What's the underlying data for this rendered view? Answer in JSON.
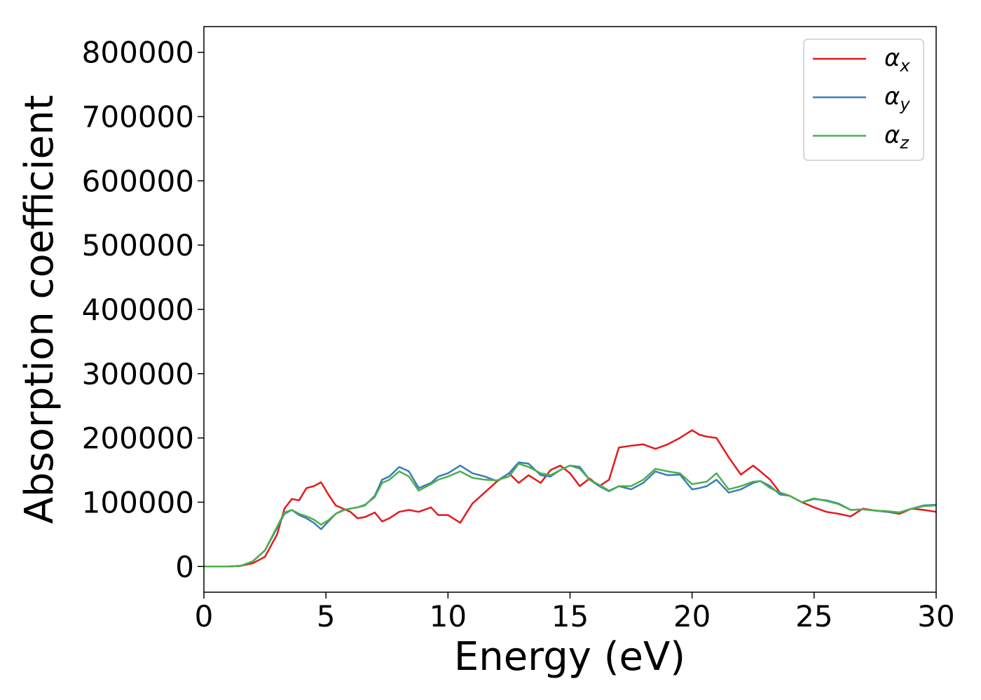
{
  "chart_data": {
    "type": "line",
    "title": "",
    "xlabel": "Energy (eV)",
    "ylabel": "Absorption coefficient",
    "xlim": [
      0,
      30
    ],
    "ylim": [
      -40000,
      840000
    ],
    "xticks": [
      0,
      5,
      10,
      15,
      20,
      25,
      30
    ],
    "yticks": [
      0,
      100000,
      200000,
      300000,
      400000,
      500000,
      600000,
      700000,
      800000
    ],
    "grid": false,
    "legend_position": "top-right",
    "series": [
      {
        "name": "α",
        "subscript": "x",
        "color": "#e41a1c",
        "x": [
          0,
          1,
          1.5,
          2,
          2.5,
          3,
          3.3,
          3.6,
          3.9,
          4.2,
          4.5,
          4.8,
          5.1,
          5.4,
          5.7,
          6,
          6.3,
          6.6,
          7,
          7.3,
          7.6,
          8,
          8.4,
          8.8,
          9.3,
          9.6,
          10,
          10.5,
          11,
          11.5,
          12,
          12.5,
          12.9,
          13.3,
          13.8,
          14.2,
          14.6,
          15,
          15.4,
          15.8,
          16.2,
          16.6,
          17,
          17.5,
          18,
          18.5,
          19,
          19.5,
          20,
          20.3,
          20.6,
          21,
          21.5,
          22,
          22.5,
          22.8,
          23.2,
          23.6,
          24,
          24.5,
          25,
          25.5,
          26,
          26.5,
          27,
          27.5,
          28,
          28.5,
          29,
          29.5,
          30
        ],
        "y": [
          0,
          0,
          1000,
          5000,
          15000,
          50000,
          90000,
          105000,
          103000,
          122000,
          125000,
          131000,
          112000,
          95000,
          90000,
          85000,
          75000,
          77000,
          84000,
          70000,
          75000,
          85000,
          88000,
          85000,
          92000,
          80000,
          80000,
          68000,
          98000,
          115000,
          132000,
          145000,
          130000,
          142000,
          130000,
          150000,
          157000,
          145000,
          125000,
          137000,
          125000,
          135000,
          185000,
          188000,
          190000,
          183000,
          190000,
          200000,
          212000,
          205000,
          202000,
          200000,
          170000,
          143000,
          157000,
          148000,
          135000,
          115000,
          110000,
          100000,
          92000,
          85000,
          82000,
          78000,
          90000,
          87000,
          85000,
          82000,
          90000,
          88000,
          85000
        ]
      },
      {
        "name": "α",
        "subscript": "y",
        "color": "#377eb8",
        "x": [
          0,
          1,
          1.5,
          2,
          2.5,
          3,
          3.3,
          3.6,
          3.9,
          4.2,
          4.5,
          4.8,
          5.1,
          5.4,
          5.7,
          6,
          6.3,
          6.6,
          7,
          7.3,
          7.6,
          8,
          8.4,
          8.8,
          9.3,
          9.6,
          10,
          10.5,
          11,
          11.5,
          12,
          12.5,
          12.9,
          13.3,
          13.8,
          14.2,
          14.6,
          15,
          15.4,
          15.8,
          16.2,
          16.6,
          17,
          17.5,
          18,
          18.5,
          19,
          19.5,
          20,
          20.3,
          20.6,
          21,
          21.5,
          22,
          22.5,
          22.8,
          23.2,
          23.6,
          24,
          24.5,
          25,
          25.5,
          26,
          26.5,
          27,
          27.5,
          28,
          28.5,
          29,
          29.5,
          30
        ],
        "y": [
          0,
          0,
          1000,
          8000,
          25000,
          60000,
          82000,
          88000,
          80000,
          75000,
          68000,
          58000,
          70000,
          82000,
          88000,
          90000,
          92000,
          95000,
          110000,
          135000,
          140000,
          155000,
          148000,
          122000,
          130000,
          140000,
          145000,
          157000,
          145000,
          140000,
          133000,
          145000,
          162000,
          160000,
          142000,
          140000,
          150000,
          157000,
          155000,
          135000,
          125000,
          117000,
          125000,
          120000,
          130000,
          148000,
          142000,
          143000,
          120000,
          122000,
          125000,
          135000,
          115000,
          120000,
          130000,
          133000,
          125000,
          112000,
          110000,
          100000,
          105000,
          103000,
          98000,
          88000,
          89000,
          87000,
          85000,
          84000,
          90000,
          95000,
          96000
        ]
      },
      {
        "name": "α",
        "subscript": "z",
        "color": "#4daf4a",
        "x": [
          0,
          1,
          1.5,
          2,
          2.5,
          3,
          3.3,
          3.6,
          3.9,
          4.2,
          4.5,
          4.8,
          5.1,
          5.4,
          5.7,
          6,
          6.3,
          6.6,
          7,
          7.3,
          7.6,
          8,
          8.4,
          8.8,
          9.3,
          9.6,
          10,
          10.5,
          11,
          11.5,
          12,
          12.5,
          12.9,
          13.3,
          13.8,
          14.2,
          14.6,
          15,
          15.4,
          15.8,
          16.2,
          16.6,
          17,
          17.5,
          18,
          18.5,
          19,
          19.5,
          20,
          20.3,
          20.6,
          21,
          21.5,
          22,
          22.5,
          22.8,
          23.2,
          23.6,
          24,
          24.5,
          25,
          25.5,
          26,
          26.5,
          27,
          27.5,
          28,
          28.5,
          29,
          29.5,
          30
        ],
        "y": [
          0,
          0,
          1000,
          8000,
          25000,
          62000,
          84000,
          88000,
          82000,
          78000,
          73000,
          65000,
          72000,
          82000,
          87000,
          90000,
          92000,
          96000,
          108000,
          130000,
          135000,
          148000,
          140000,
          118000,
          128000,
          135000,
          140000,
          148000,
          138000,
          135000,
          134000,
          140000,
          160000,
          155000,
          145000,
          142000,
          150000,
          157000,
          152000,
          135000,
          127000,
          118000,
          125000,
          125000,
          135000,
          152000,
          148000,
          145000,
          128000,
          130000,
          132000,
          145000,
          120000,
          125000,
          132000,
          133000,
          122000,
          115000,
          110000,
          100000,
          106000,
          102000,
          97000,
          88000,
          89000,
          87000,
          86000,
          84000,
          90000,
          94000,
          95000
        ]
      }
    ]
  }
}
